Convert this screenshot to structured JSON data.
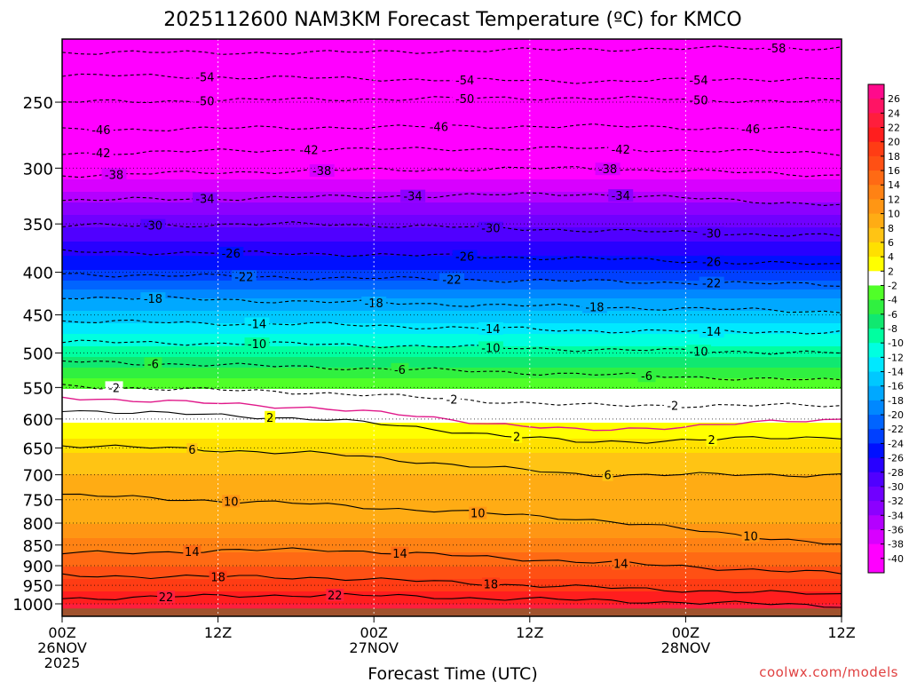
{
  "chart_data": {
    "type": "heatmap",
    "title": "2025112600 NAM3KM Forecast Temperature (ºC) for KMCO",
    "xlabel": "Forecast Time (UTC)",
    "ylabel": "",
    "x_range_hours": [
      0,
      60
    ],
    "y_axis": {
      "scale": "log-pressure",
      "range_hpa": [
        210,
        1035
      ],
      "ticks": [
        250,
        300,
        350,
        400,
        450,
        500,
        550,
        600,
        650,
        700,
        750,
        800,
        850,
        900,
        950,
        1000
      ]
    },
    "x_ticks": [
      {
        "hour": 0,
        "lines": [
          "00Z",
          "26NOV",
          "2025"
        ]
      },
      {
        "hour": 12,
        "lines": [
          "12Z"
        ]
      },
      {
        "hour": 24,
        "lines": [
          "00Z",
          "27NOV"
        ]
      },
      {
        "hour": 36,
        "lines": [
          "12Z"
        ]
      },
      {
        "hour": 48,
        "lines": [
          "00Z",
          "28NOV"
        ]
      },
      {
        "hour": 60,
        "lines": [
          "12Z"
        ]
      }
    ],
    "temperature_profile": [
      {
        "p": 210,
        "t": -60
      },
      {
        "p": 250,
        "t": -52
      },
      {
        "p": 270,
        "t": -47
      },
      {
        "p": 300,
        "t": -40
      },
      {
        "p": 330,
        "t": -34
      },
      {
        "p": 360,
        "t": -29
      },
      {
        "p": 390,
        "t": -25
      },
      {
        "p": 410,
        "t": -22
      },
      {
        "p": 430,
        "t": -18
      },
      {
        "p": 460,
        "t": -14
      },
      {
        "p": 490,
        "t": -10
      },
      {
        "p": 520,
        "t": -6
      },
      {
        "p": 560,
        "t": -1
      },
      {
        "p": 590,
        "t": 1
      },
      {
        "p": 620,
        "t": 3
      },
      {
        "p": 660,
        "t": 6
      },
      {
        "p": 700,
        "t": 8
      },
      {
        "p": 750,
        "t": 9
      },
      {
        "p": 800,
        "t": 10
      },
      {
        "p": 850,
        "t": 13
      },
      {
        "p": 900,
        "t": 16
      },
      {
        "p": 950,
        "t": 19
      },
      {
        "p": 1000,
        "t": 22
      },
      {
        "p": 1035,
        "t": 23
      }
    ],
    "contours": [
      {
        "value": -58,
        "dashed": true,
        "p": [
          218,
          218,
          216,
          215
        ],
        "labels": [
          {
            "h": 55,
            "text": "-58"
          }
        ]
      },
      {
        "value": -54,
        "dashed": true,
        "p": [
          232,
          234,
          236,
          234
        ],
        "labels": [
          {
            "h": 11,
            "text": "-54"
          },
          {
            "h": 31,
            "text": "-54"
          },
          {
            "h": 49,
            "text": "-54"
          }
        ]
      },
      {
        "value": -50,
        "dashed": true,
        "p": [
          250,
          248,
          247,
          250
        ],
        "labels": [
          {
            "h": 11,
            "text": "-50"
          },
          {
            "h": 31,
            "text": "-50"
          },
          {
            "h": 49,
            "text": "-50"
          }
        ]
      },
      {
        "value": -46,
        "dashed": true,
        "p": [
          270,
          268,
          267,
          270
        ],
        "labels": [
          {
            "h": 3,
            "text": "-46"
          },
          {
            "h": 29,
            "text": "-46"
          },
          {
            "h": 53,
            "text": "-46"
          }
        ]
      },
      {
        "value": -42,
        "dashed": true,
        "p": [
          288,
          285,
          284,
          288
        ],
        "labels": [
          {
            "h": 3,
            "text": "-42"
          },
          {
            "h": 19,
            "text": "-42"
          },
          {
            "h": 43,
            "text": "-42"
          }
        ]
      },
      {
        "value": -38,
        "dashed": true,
        "p": [
          306,
          302,
          300,
          306
        ],
        "labels": [
          {
            "h": 4,
            "text": "-38"
          },
          {
            "h": 20,
            "text": "-38"
          },
          {
            "h": 42,
            "text": "-38"
          }
        ]
      },
      {
        "value": -34,
        "dashed": true,
        "p": [
          328,
          325,
          322,
          332
        ],
        "labels": [
          {
            "h": 11,
            "text": "-34"
          },
          {
            "h": 27,
            "text": "-34"
          },
          {
            "h": 43,
            "text": "-34"
          }
        ]
      },
      {
        "value": -30,
        "dashed": true,
        "p": [
          352,
          350,
          356,
          362
        ],
        "labels": [
          {
            "h": 7,
            "text": "-30"
          },
          {
            "h": 33,
            "text": "-30"
          },
          {
            "h": 50,
            "text": "-30"
          }
        ]
      },
      {
        "value": -26,
        "dashed": true,
        "p": [
          378,
          380,
          385,
          392
        ],
        "labels": [
          {
            "h": 13,
            "text": "-26"
          },
          {
            "h": 31,
            "text": "-26"
          },
          {
            "h": 50,
            "text": "-26"
          }
        ]
      },
      {
        "value": -22,
        "dashed": true,
        "p": [
          402,
          406,
          410,
          414
        ],
        "labels": [
          {
            "h": 14,
            "text": "-22"
          },
          {
            "h": 30,
            "text": "-22"
          },
          {
            "h": 50,
            "text": "-22"
          }
        ]
      },
      {
        "value": -18,
        "dashed": true,
        "p": [
          428,
          434,
          440,
          446
        ],
        "labels": [
          {
            "h": 7,
            "text": "-18"
          },
          {
            "h": 24,
            "text": "-18"
          },
          {
            "h": 41,
            "text": "-18"
          }
        ]
      },
      {
        "value": -14,
        "dashed": true,
        "p": [
          458,
          462,
          470,
          472
        ],
        "labels": [
          {
            "h": 15,
            "text": "-14"
          },
          {
            "h": 33,
            "text": "-14"
          },
          {
            "h": 50,
            "text": "-14"
          }
        ]
      },
      {
        "value": -10,
        "dashed": true,
        "p": [
          485,
          488,
          495,
          500
        ],
        "labels": [
          {
            "h": 15,
            "text": "-10"
          },
          {
            "h": 33,
            "text": "-10"
          },
          {
            "h": 49,
            "text": "-10"
          }
        ]
      },
      {
        "value": -6,
        "dashed": true,
        "p": [
          512,
          520,
          530,
          540
        ],
        "labels": [
          {
            "h": 7,
            "text": "-6"
          },
          {
            "h": 26,
            "text": "-6"
          },
          {
            "h": 45,
            "text": "-6"
          }
        ]
      },
      {
        "value": -2,
        "dashed": true,
        "p": [
          548,
          558,
          578,
          578
        ],
        "labels": [
          {
            "h": 4,
            "text": "-2"
          },
          {
            "h": 30,
            "text": "-2"
          },
          {
            "h": 47,
            "text": "-2"
          }
        ]
      },
      {
        "value": 0,
        "dashed": false,
        "color": "#e0188a",
        "p": [
          565,
          582,
          620,
          600
        ],
        "labels": []
      },
      {
        "value": 2,
        "dashed": false,
        "p": [
          585,
          600,
          640,
          630
        ],
        "labels": [
          {
            "h": 16,
            "text": "2"
          },
          {
            "h": 35,
            "text": "2"
          },
          {
            "h": 50,
            "text": "2"
          }
        ]
      },
      {
        "value": 6,
        "dashed": false,
        "p": [
          645,
          660,
          700,
          700
        ],
        "labels": [
          {
            "h": 10,
            "text": "6"
          },
          {
            "h": 42,
            "text": "6"
          }
        ]
      },
      {
        "value": 10,
        "dashed": false,
        "p": [
          740,
          760,
          790,
          850
        ],
        "labels": [
          {
            "h": 13,
            "text": "10"
          },
          {
            "h": 32,
            "text": "10"
          },
          {
            "h": 53,
            "text": "10"
          }
        ]
      },
      {
        "value": 14,
        "dashed": false,
        "p": [
          870,
          860,
          890,
          920
        ],
        "labels": [
          {
            "h": 10,
            "text": "14"
          },
          {
            "h": 26,
            "text": "14"
          },
          {
            "h": 43,
            "text": "14"
          }
        ]
      },
      {
        "value": 18,
        "dashed": false,
        "p": [
          925,
          930,
          955,
          975
        ],
        "labels": [
          {
            "h": 12,
            "text": "18"
          },
          {
            "h": 33,
            "text": "18"
          }
        ]
      },
      {
        "value": 22,
        "dashed": false,
        "p": [
          985,
          975,
          990,
          1005
        ],
        "labels": [
          {
            "h": 8,
            "text": "22"
          },
          {
            "h": 21,
            "text": "22"
          }
        ]
      }
    ],
    "colorbar": {
      "labels": [
        "26",
        "24",
        "22",
        "20",
        "18",
        "16",
        "14",
        "12",
        "10",
        "8",
        "6",
        "4",
        "2",
        "-2",
        "-4",
        "-6",
        "-8",
        "-10",
        "-12",
        "-14",
        "-16",
        "-18",
        "-20",
        "-22",
        "-24",
        "-26",
        "-28",
        "-30",
        "-32",
        "-34",
        "-36",
        "-38",
        "-40"
      ],
      "colors": [
        "#ff0a8c",
        "#ff1464",
        "#ff1e3c",
        "#ff1e1e",
        "#ff3c14",
        "#ff5014",
        "#ff6a14",
        "#ff8214",
        "#ff9614",
        "#ffac14",
        "#ffc414",
        "#ffe000",
        "#ffff00",
        "#ffffff",
        "#50ff28",
        "#30f040",
        "#10e870",
        "#00ffa0",
        "#00ffe0",
        "#00e8ff",
        "#00c8ff",
        "#00a8ff",
        "#0088ff",
        "#0064ff",
        "#0040ff",
        "#0010ff",
        "#2800ff",
        "#5000ff",
        "#7000ff",
        "#8c00ff",
        "#b400ff",
        "#d800ff",
        "#ff00ff"
      ]
    },
    "ground_color": "#a0522d",
    "pink_color": "#ff00ff"
  },
  "credit": "coolwx.com/models"
}
